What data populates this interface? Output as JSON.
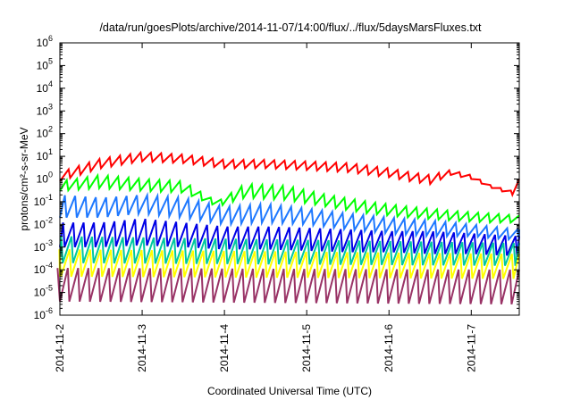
{
  "chart_data": {
    "type": "line",
    "title": "/data/run/goesPlots/archive/2014-11-07/14:00/flux/../flux/5daysMarsFluxes.txt",
    "xlabel": "Coordinated Universal Time (UTC)",
    "ylabel": "protons/cm²-s-sr-MeV",
    "yscale": "log",
    "ylim": [
      1e-06,
      1000000.0
    ],
    "xlim": [
      "2014-11-02T00:00",
      "2014-11-07T14:00"
    ],
    "y_ticks": [
      {
        "value": 1e-06,
        "base": "10",
        "exp": "-6"
      },
      {
        "value": 1e-05,
        "base": "10",
        "exp": "-5"
      },
      {
        "value": 0.0001,
        "base": "10",
        "exp": "-4"
      },
      {
        "value": 0.001,
        "base": "10",
        "exp": "-3"
      },
      {
        "value": 0.01,
        "base": "10",
        "exp": "-2"
      },
      {
        "value": 0.1,
        "base": "10",
        "exp": "-1"
      },
      {
        "value": 1,
        "base": "10",
        "exp": "0"
      },
      {
        "value": 10.0,
        "base": "10",
        "exp": "1"
      },
      {
        "value": 100.0,
        "base": "10",
        "exp": "2"
      },
      {
        "value": 1000.0,
        "base": "10",
        "exp": "3"
      },
      {
        "value": 10000.0,
        "base": "10",
        "exp": "4"
      },
      {
        "value": 100000.0,
        "base": "10",
        "exp": "5"
      },
      {
        "value": 1000000.0,
        "base": "10",
        "exp": "6"
      }
    ],
    "x_ticks": [
      "2014-11-2",
      "2014-11-3",
      "2014-11-4",
      "2014-11-5",
      "2014-11-6",
      "2014-11-7"
    ],
    "grid": false,
    "legend": "none",
    "sawtooth_period_hours": 3,
    "series": [
      {
        "color": "#ff0000",
        "x": [
          "2014-11-02T00:00",
          "2014-11-02T12:00",
          "2014-11-03T00:00",
          "2014-11-03T12:00",
          "2014-11-04T00:00",
          "2014-11-04T12:00",
          "2014-11-05T00:00",
          "2014-11-05T12:00",
          "2014-11-06T00:00",
          "2014-11-06T06:00",
          "2014-11-06T12:00",
          "2014-11-06T18:00",
          "2014-11-07T00:00",
          "2014-11-07T06:00",
          "2014-11-07T12:00",
          "2014-11-07T14:00"
        ],
        "peak": [
          2,
          8,
          15,
          12,
          7,
          7,
          6,
          5,
          3,
          2,
          1.5,
          2.5,
          1.5,
          0.5,
          0.3,
          1
        ],
        "low": [
          0.8,
          3,
          6,
          5,
          3,
          3,
          2.5,
          2,
          1.2,
          0.8,
          0.6,
          1.5,
          1,
          0.4,
          0.2,
          0.6
        ]
      },
      {
        "color": "#00ff00",
        "x": [
          "2014-11-02T00:00",
          "2014-11-02T12:00",
          "2014-11-03T00:00",
          "2014-11-03T12:00",
          "2014-11-03T22:00",
          "2014-11-04T06:00",
          "2014-11-04T18:00",
          "2014-11-05T06:00",
          "2014-11-05T18:00",
          "2014-11-06T06:00",
          "2014-11-06T18:00",
          "2014-11-07T06:00",
          "2014-11-07T14:00"
        ],
        "peak": [
          0.8,
          1.5,
          1,
          0.8,
          0.1,
          0.6,
          0.5,
          0.2,
          0.1,
          0.06,
          0.04,
          0.03,
          0.025
        ],
        "low": [
          0.3,
          0.4,
          0.3,
          0.25,
          0.06,
          0.15,
          0.12,
          0.06,
          0.03,
          0.02,
          0.015,
          0.012,
          0.012
        ]
      },
      {
        "color": "#1e78ff",
        "x": [
          "2014-11-02T00:00",
          "2014-11-02T12:00",
          "2014-11-03T00:00",
          "2014-11-03T12:00",
          "2014-11-04T00:00",
          "2014-11-04T12:00",
          "2014-11-05T00:00",
          "2014-11-05T12:00",
          "2014-11-06T00:00",
          "2014-11-06T12:00",
          "2014-11-07T00:00",
          "2014-11-07T14:00"
        ],
        "peak": [
          0.2,
          0.15,
          0.2,
          0.15,
          0.06,
          0.08,
          0.05,
          0.03,
          0.02,
          0.015,
          0.01,
          0.006
        ],
        "low": [
          0.02,
          0.02,
          0.03,
          0.02,
          0.01,
          0.012,
          0.01,
          0.006,
          0.004,
          0.003,
          0.003,
          0.002
        ]
      },
      {
        "color": "#0000e6",
        "x": [
          "2014-11-02T00:00",
          "2014-11-02T12:00",
          "2014-11-03T00:00",
          "2014-11-03T12:00",
          "2014-11-04T00:00",
          "2014-11-04T12:00",
          "2014-11-05T00:00",
          "2014-11-05T12:00",
          "2014-11-06T00:00",
          "2014-11-06T12:00",
          "2014-11-07T00:00",
          "2014-11-07T14:00"
        ],
        "peak": [
          0.012,
          0.012,
          0.018,
          0.012,
          0.008,
          0.008,
          0.007,
          0.006,
          0.005,
          0.005,
          0.004,
          0.003
        ],
        "low": [
          0.001,
          0.001,
          0.0012,
          0.001,
          0.0008,
          0.0008,
          0.0007,
          0.0006,
          0.0006,
          0.0005,
          0.0005,
          0.0004
        ]
      },
      {
        "color": "#00c8a0",
        "x": [
          "2014-11-02T00:00",
          "2014-11-07T14:00"
        ],
        "peak": [
          0.003,
          0.0015
        ],
        "low": [
          0.0002,
          0.00015
        ]
      },
      {
        "color": "#ffff00",
        "x": [
          "2014-11-02T00:00",
          "2014-11-07T14:00"
        ],
        "peak": [
          0.0008,
          0.0005
        ],
        "low": [
          5e-05,
          4e-05
        ]
      },
      {
        "color": "#993366",
        "x": [
          "2014-11-02T00:00",
          "2014-11-07T14:00"
        ],
        "peak": [
          0.00012,
          0.0001
        ],
        "low": [
          4e-06,
          3e-06
        ]
      }
    ]
  }
}
